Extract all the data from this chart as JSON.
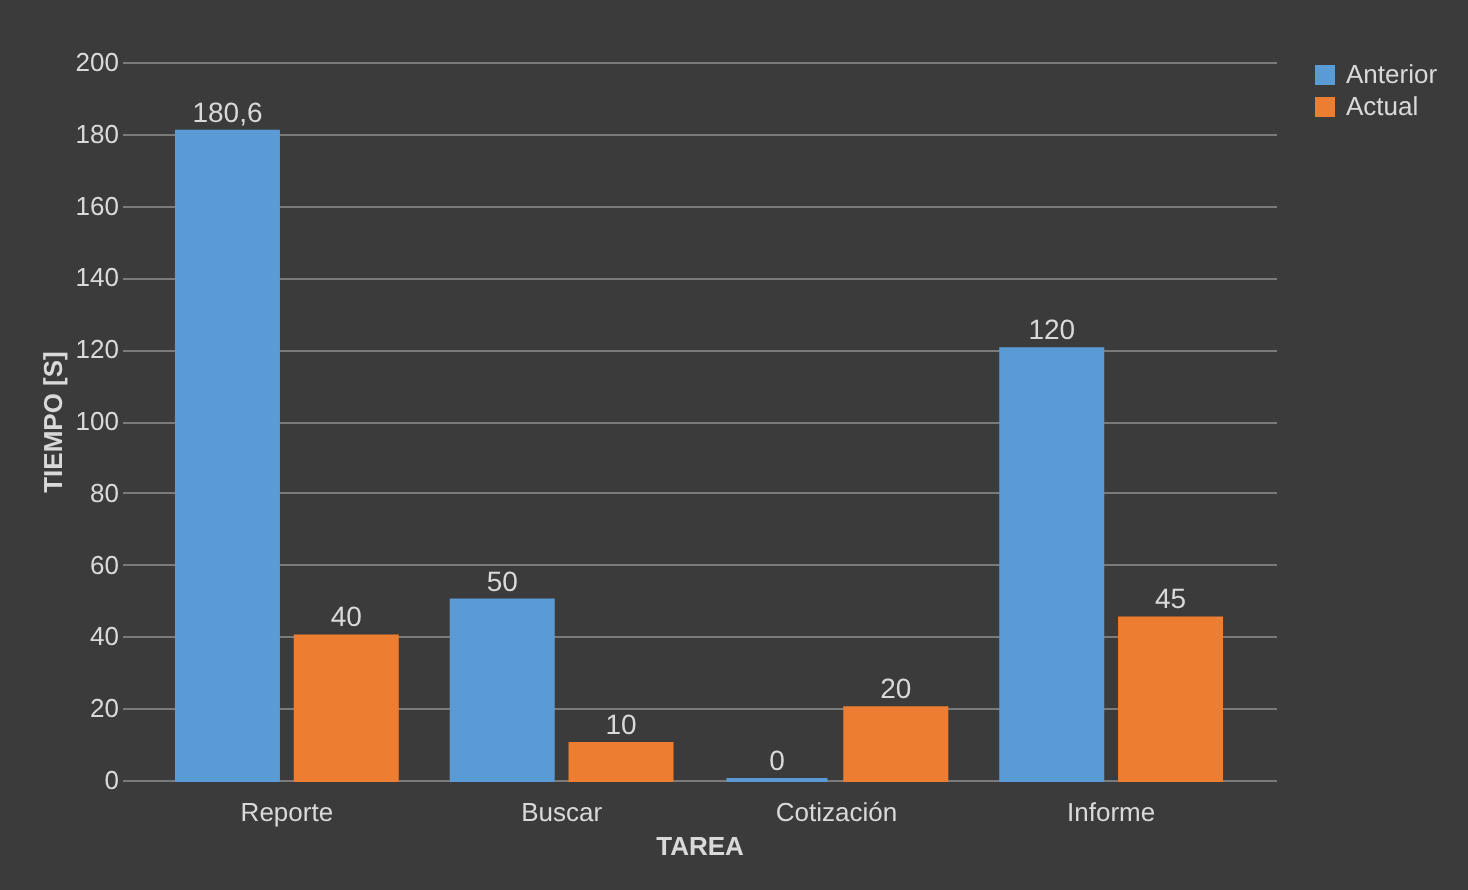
{
  "chart_data": {
    "type": "bar",
    "xlabel": "TAREA",
    "ylabel": "TIEMPO [S]",
    "categories": [
      "Reporte",
      "Buscar",
      "Cotización",
      "Informe"
    ],
    "series": [
      {
        "name": "Anterior",
        "color": "#5b9bd5",
        "values": [
          180.6,
          50,
          0,
          120
        ],
        "value_labels": [
          "180,6",
          "50",
          "0",
          "120"
        ]
      },
      {
        "name": "Actual",
        "color": "#ed7d31",
        "values": [
          40,
          10,
          20,
          45
        ],
        "value_labels": [
          "40",
          "10",
          "20",
          "45"
        ]
      }
    ],
    "ylim": [
      0,
      200
    ],
    "yticks": [
      0,
      20,
      40,
      60,
      80,
      100,
      120,
      140,
      160,
      180,
      200
    ],
    "grid": "y",
    "legend": "right"
  }
}
